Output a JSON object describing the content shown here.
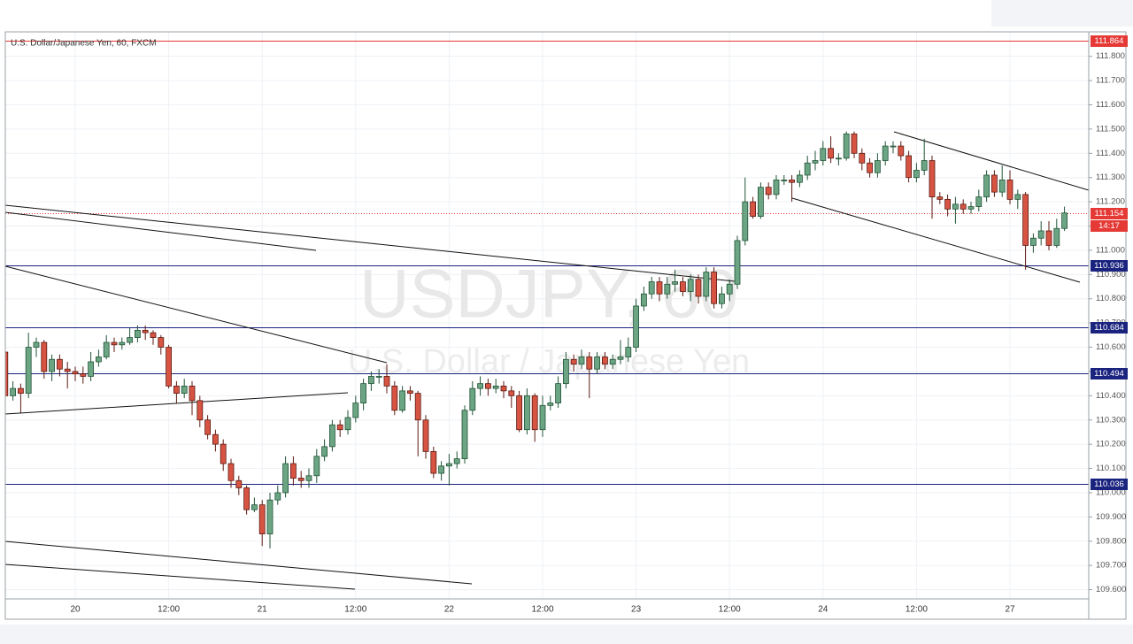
{
  "chart_data": {
    "type": "candlestick",
    "title": "U.S. Dollar/Japanese Yen, 60, FXCM",
    "watermark": "USDJPY, 60",
    "watermark_subtitle": "U.S. Dollar / Japanese Yen",
    "countdown": "14:17",
    "up_color": "#6ba583",
    "down_color": "#d75442",
    "up_border": "#225437",
    "down_border": "#5b1a13",
    "grid": true,
    "categories": [
      null,
      null,
      null,
      null,
      null,
      null,
      null,
      null,
      null,
      "20",
      null,
      null,
      null,
      null,
      null,
      null,
      null,
      null,
      null,
      null,
      null,
      "12:00",
      null,
      null,
      null,
      null,
      null,
      null,
      null,
      null,
      null,
      null,
      null,
      "21",
      null,
      null,
      null,
      null,
      null,
      null,
      null,
      null,
      null,
      null,
      null,
      "12:00",
      null,
      null,
      null,
      null,
      null,
      null,
      null,
      null,
      null,
      null,
      null,
      "22",
      null,
      null,
      null,
      null,
      null,
      null,
      null,
      null,
      null,
      null,
      null,
      "12:00",
      null,
      null,
      null,
      null,
      null,
      null,
      null,
      null,
      null,
      null,
      null,
      "23",
      null,
      null,
      null,
      null,
      null,
      null,
      null,
      null,
      null,
      null,
      null,
      "12:00",
      null,
      null,
      null,
      null,
      null,
      null,
      null,
      null,
      null,
      null,
      null,
      "24",
      null,
      null,
      null,
      null,
      null,
      null,
      null,
      null,
      null,
      null,
      null,
      "12:00",
      null,
      null,
      null,
      null,
      null,
      null,
      null,
      null,
      null,
      null,
      null,
      "27",
      null,
      null,
      null,
      null,
      null,
      null,
      null
    ],
    "open": [
      110.58,
      110.4,
      110.43,
      110.41,
      110.6,
      110.62,
      110.5,
      110.55,
      110.51,
      110.5,
      110.49,
      110.48,
      110.54,
      110.56,
      110.62,
      110.61,
      110.62,
      110.64,
      110.67,
      110.66,
      110.64,
      110.6,
      110.44,
      110.41,
      110.44,
      110.38,
      110.3,
      110.24,
      110.2,
      110.12,
      110.05,
      110.02,
      109.93,
      109.95,
      109.83,
      109.97,
      110.0,
      110.12,
      110.06,
      110.05,
      110.07,
      110.15,
      110.19,
      110.28,
      110.26,
      110.31,
      110.37,
      110.45,
      110.48,
      110.48,
      110.44,
      110.34,
      110.42,
      110.41,
      110.3,
      110.17,
      110.08,
      110.11,
      110.12,
      110.14,
      110.34,
      110.43,
      110.45,
      110.43,
      110.44,
      110.42,
      110.4,
      110.26,
      110.4,
      110.26,
      110.36,
      110.37,
      110.45,
      110.55,
      110.53,
      110.56,
      110.51,
      110.56,
      110.53,
      110.55,
      110.56,
      110.6,
      110.77,
      110.82,
      110.87,
      110.82,
      110.86,
      110.87,
      110.83,
      110.88,
      110.81,
      110.91,
      110.78,
      110.82,
      110.86,
      111.04,
      111.2,
      111.14,
      111.26,
      111.23,
      111.29,
      111.29,
      111.28,
      111.31,
      111.36,
      111.37,
      111.42,
      111.38,
      111.38,
      111.48,
      111.4,
      111.36,
      111.32,
      111.37,
      111.43,
      111.43,
      111.39,
      111.3,
      111.33,
      111.37,
      111.22,
      111.21,
      111.17,
      111.19,
      111.17,
      111.18,
      111.22,
      111.31,
      111.24,
      111.29,
      111.21,
      111.23,
      111.02,
      111.05,
      111.08,
      111.02,
      111.09
    ],
    "high": [
      110.6,
      110.46,
      110.45,
      110.66,
      110.64,
      110.63,
      110.57,
      110.57,
      110.54,
      110.52,
      110.52,
      110.58,
      110.59,
      110.65,
      110.64,
      110.64,
      110.68,
      110.69,
      110.69,
      110.67,
      110.65,
      110.61,
      110.46,
      110.47,
      110.46,
      110.4,
      110.32,
      110.26,
      110.22,
      110.14,
      110.07,
      110.03,
      109.98,
      109.97,
      110.0,
      110.03,
      110.15,
      110.15,
      110.09,
      110.1,
      110.18,
      110.22,
      110.3,
      110.3,
      110.34,
      110.4,
      110.47,
      110.5,
      110.51,
      110.53,
      110.46,
      110.44,
      110.44,
      110.42,
      110.32,
      110.19,
      110.13,
      110.16,
      110.17,
      110.36,
      110.46,
      110.48,
      110.47,
      110.47,
      110.46,
      110.44,
      110.42,
      110.43,
      110.41,
      110.4,
      110.4,
      110.48,
      110.58,
      110.57,
      110.59,
      110.58,
      110.58,
      110.58,
      110.57,
      110.63,
      110.64,
      110.8,
      110.85,
      110.89,
      110.89,
      110.89,
      110.92,
      110.89,
      110.9,
      110.9,
      110.93,
      110.93,
      110.85,
      110.88,
      111.06,
      111.3,
      111.22,
      111.28,
      111.28,
      111.31,
      111.31,
      111.31,
      111.33,
      111.39,
      111.41,
      111.45,
      111.47,
      111.4,
      111.49,
      111.49,
      111.42,
      111.38,
      111.4,
      111.45,
      111.45,
      111.45,
      111.41,
      111.36,
      111.46,
      111.39,
      111.24,
      111.23,
      111.22,
      111.21,
      111.2,
      111.25,
      111.33,
      111.33,
      111.35,
      111.33,
      111.25,
      111.24,
      111.07,
      111.12,
      111.12,
      111.13,
      111.18
    ],
    "low": [
      110.37,
      110.38,
      110.33,
      110.39,
      110.56,
      110.47,
      110.46,
      110.48,
      110.43,
      110.46,
      110.45,
      110.46,
      110.52,
      110.55,
      110.58,
      110.59,
      110.61,
      110.62,
      110.63,
      110.61,
      110.57,
      110.43,
      110.37,
      110.39,
      110.32,
      110.27,
      110.22,
      110.17,
      110.09,
      110.02,
      109.99,
      109.91,
      109.92,
      109.78,
      109.77,
      109.95,
      109.98,
      110.03,
      110.02,
      110.02,
      110.04,
      110.13,
      110.17,
      110.23,
      110.24,
      110.29,
      110.34,
      110.42,
      110.45,
      110.41,
      110.32,
      110.33,
      110.38,
      110.15,
      110.14,
      110.06,
      110.05,
      110.03,
      110.1,
      110.12,
      110.32,
      110.4,
      110.4,
      110.41,
      110.39,
      110.35,
      110.25,
      110.24,
      110.21,
      110.23,
      110.34,
      110.35,
      110.43,
      110.5,
      110.51,
      110.39,
      110.49,
      110.51,
      110.51,
      110.53,
      110.54,
      110.58,
      110.75,
      110.8,
      110.79,
      110.8,
      110.83,
      110.81,
      110.79,
      110.78,
      110.79,
      110.76,
      110.76,
      110.79,
      110.84,
      111.02,
      111.13,
      111.13,
      111.21,
      111.21,
      111.27,
      111.2,
      111.26,
      111.29,
      111.33,
      111.35,
      111.36,
      111.35,
      111.37,
      111.38,
      111.33,
      111.3,
      111.3,
      111.35,
      111.4,
      111.37,
      111.28,
      111.28,
      111.31,
      111.13,
      111.19,
      111.14,
      111.11,
      111.15,
      111.15,
      111.16,
      111.2,
      111.22,
      111.22,
      111.19,
      111.17,
      110.92,
      110.99,
      111.02,
      111.0,
      111.01,
      111.08
    ],
    "close": [
      110.4,
      110.43,
      110.41,
      110.6,
      110.62,
      110.5,
      110.55,
      110.51,
      110.5,
      110.49,
      110.48,
      110.54,
      110.56,
      110.62,
      110.61,
      110.62,
      110.64,
      110.67,
      110.66,
      110.64,
      110.6,
      110.44,
      110.41,
      110.44,
      110.38,
      110.3,
      110.24,
      110.2,
      110.12,
      110.05,
      110.02,
      109.93,
      109.95,
      109.83,
      109.97,
      110.0,
      110.12,
      110.06,
      110.05,
      110.07,
      110.15,
      110.19,
      110.28,
      110.26,
      110.31,
      110.37,
      110.45,
      110.48,
      110.48,
      110.44,
      110.34,
      110.42,
      110.41,
      110.3,
      110.17,
      110.08,
      110.11,
      110.12,
      110.14,
      110.34,
      110.43,
      110.45,
      110.43,
      110.44,
      110.42,
      110.4,
      110.26,
      110.4,
      110.26,
      110.36,
      110.37,
      110.45,
      110.55,
      110.53,
      110.56,
      110.51,
      110.56,
      110.53,
      110.55,
      110.56,
      110.6,
      110.77,
      110.82,
      110.87,
      110.82,
      110.86,
      110.87,
      110.83,
      110.88,
      110.81,
      110.91,
      110.78,
      110.82,
      110.86,
      111.04,
      111.2,
      111.14,
      111.26,
      111.23,
      111.29,
      111.29,
      111.28,
      111.31,
      111.36,
      111.37,
      111.42,
      111.38,
      111.38,
      111.48,
      111.4,
      111.36,
      111.32,
      111.37,
      111.43,
      111.43,
      111.39,
      111.3,
      111.33,
      111.37,
      111.22,
      111.21,
      111.17,
      111.19,
      111.17,
      111.18,
      111.22,
      111.31,
      111.24,
      111.29,
      111.21,
      111.23,
      111.02,
      111.05,
      111.08,
      111.02,
      111.09,
      111.154
    ],
    "ylim": [
      109.562,
      111.901
    ],
    "yticks": [
      {
        "value": 109.6,
        "label": "109.600"
      },
      {
        "value": 109.7,
        "label": "109.700"
      },
      {
        "value": 109.8,
        "label": "109.800"
      },
      {
        "value": 109.9,
        "label": "109.900"
      },
      {
        "value": 110.0,
        "label": "110.000"
      },
      {
        "value": 110.1,
        "label": "110.100"
      },
      {
        "value": 110.2,
        "label": "110.200"
      },
      {
        "value": 110.3,
        "label": "110.300"
      },
      {
        "value": 110.4,
        "label": "110.400"
      },
      {
        "value": 110.5,
        "label": "110.500"
      },
      {
        "value": 110.6,
        "label": "110.600"
      },
      {
        "value": 110.7,
        "label": "110.700"
      },
      {
        "value": 110.8,
        "label": "110.800"
      },
      {
        "value": 110.9,
        "label": "110.900"
      },
      {
        "value": 111.0,
        "label": "111.000"
      },
      {
        "value": 111.1,
        "label": "111.100"
      },
      {
        "value": 111.2,
        "label": "111.200"
      },
      {
        "value": 111.3,
        "label": "111.300"
      },
      {
        "value": 111.4,
        "label": "111.400"
      },
      {
        "value": 111.5,
        "label": "111.500"
      },
      {
        "value": 111.6,
        "label": "111.600"
      },
      {
        "value": 111.7,
        "label": "111.700"
      },
      {
        "value": 111.8,
        "label": "111.800"
      }
    ],
    "price_lines": [
      {
        "value": 111.864,
        "color": "#e53935",
        "style": "solid"
      },
      {
        "value": 111.154,
        "color": "#e53935",
        "style": "dotted"
      },
      {
        "value": 110.936,
        "color": "#1a237e",
        "style": "solid"
      },
      {
        "value": 110.684,
        "color": "#1a237e",
        "style": "solid"
      },
      {
        "value": 110.494,
        "color": "#1a237e",
        "style": "solid"
      },
      {
        "value": 110.036,
        "color": "#1a237e",
        "style": "solid"
      }
    ]
  }
}
